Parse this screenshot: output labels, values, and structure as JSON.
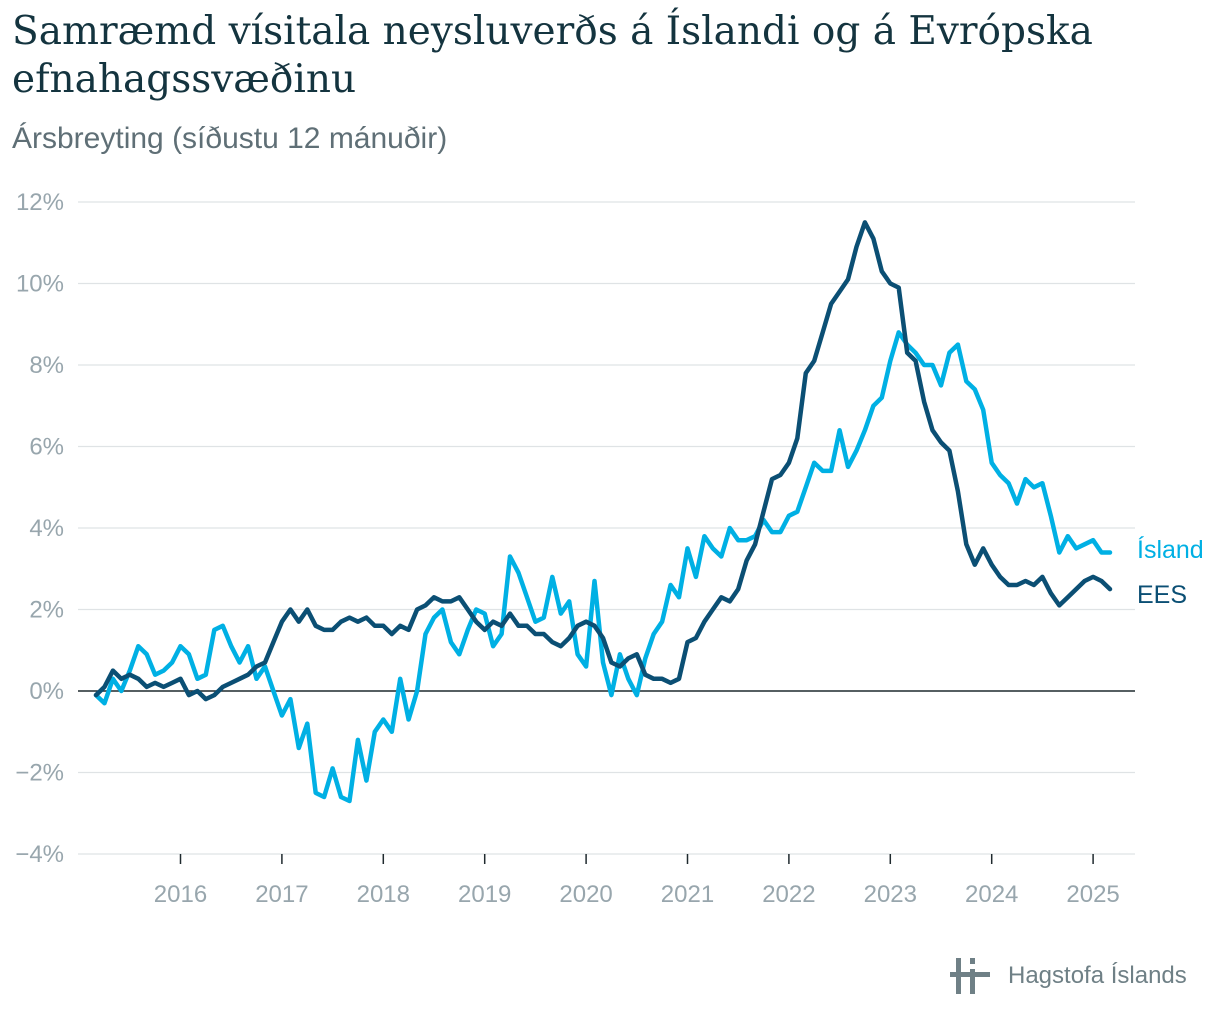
{
  "header": {
    "title": "Samræmd vísitala neysluverðs á Íslandi og á Evrópska efnahagssvæðinu",
    "subtitle": "Ársbreyting (síðustu 12 mánuðir)"
  },
  "brand": {
    "name": "Hagstofa Íslands",
    "icon": "hagstofa-logo-icon"
  },
  "colors": {
    "island": "#00b0e4",
    "ees": "#0b4f74",
    "grid": "#dfe3e5",
    "zero": "#1f2a2e"
  },
  "chart_data": {
    "type": "line",
    "x_start": "2015-03",
    "x_end": "2025-03",
    "x_ticks": [
      2016,
      2017,
      2018,
      2019,
      2020,
      2021,
      2022,
      2023,
      2024,
      2025
    ],
    "y_ticks": [
      -4,
      -2,
      0,
      2,
      4,
      6,
      8,
      10,
      12
    ],
    "y_tick_labels": [
      "−4%",
      "−2%",
      "0%",
      "2%",
      "4%",
      "6%",
      "8%",
      "10%",
      "12%"
    ],
    "ylim": [
      -4,
      12
    ],
    "grid": true,
    "legend": "direct labels at line ends",
    "series": [
      {
        "name": "Ísland",
        "key": "island",
        "values": [
          -0.1,
          -0.3,
          0.3,
          0.0,
          0.5,
          1.1,
          0.9,
          0.4,
          0.5,
          0.7,
          1.1,
          0.9,
          0.3,
          0.4,
          1.5,
          1.6,
          1.1,
          0.7,
          1.1,
          0.3,
          0.6,
          0.0,
          -0.6,
          -0.2,
          -1.4,
          -0.8,
          -2.5,
          -2.6,
          -1.9,
          -2.6,
          -2.7,
          -1.2,
          -2.2,
          -1.0,
          -0.7,
          -1.0,
          0.3,
          -0.7,
          0.0,
          1.4,
          1.8,
          2.0,
          1.2,
          0.9,
          1.5,
          2.0,
          1.9,
          1.1,
          1.4,
          3.3,
          2.9,
          2.3,
          1.7,
          1.8,
          2.8,
          1.9,
          2.2,
          0.9,
          0.6,
          2.7,
          0.7,
          -0.1,
          0.9,
          0.3,
          -0.1,
          0.8,
          1.4,
          1.7,
          2.6,
          2.3,
          3.5,
          2.8,
          3.8,
          3.5,
          3.3,
          4.0,
          3.7,
          3.7,
          3.8,
          4.2,
          3.9,
          3.9,
          4.3,
          4.4,
          5.0,
          5.6,
          5.4,
          5.4,
          6.4,
          5.5,
          5.9,
          6.4,
          7.0,
          7.2,
          8.1,
          8.8,
          8.5,
          8.3,
          8.0,
          8.0,
          7.5,
          8.3,
          8.5,
          7.6,
          7.4,
          6.9,
          5.6,
          5.3,
          5.1,
          4.6,
          5.2,
          5.0,
          5.1,
          4.3,
          3.4,
          3.8,
          3.5,
          3.6,
          3.7,
          3.4,
          3.4
        ]
      },
      {
        "name": "EES",
        "key": "ees",
        "values": [
          -0.1,
          0.1,
          0.5,
          0.3,
          0.4,
          0.3,
          0.1,
          0.2,
          0.1,
          0.2,
          0.3,
          -0.1,
          0.0,
          -0.2,
          -0.1,
          0.1,
          0.2,
          0.3,
          0.4,
          0.6,
          0.7,
          1.2,
          1.7,
          2.0,
          1.7,
          2.0,
          1.6,
          1.5,
          1.5,
          1.7,
          1.8,
          1.7,
          1.8,
          1.6,
          1.6,
          1.4,
          1.6,
          1.5,
          2.0,
          2.1,
          2.3,
          2.2,
          2.2,
          2.3,
          2.0,
          1.7,
          1.5,
          1.7,
          1.6,
          1.9,
          1.6,
          1.6,
          1.4,
          1.4,
          1.2,
          1.1,
          1.3,
          1.6,
          1.7,
          1.6,
          1.3,
          0.7,
          0.6,
          0.8,
          0.9,
          0.4,
          0.3,
          0.3,
          0.2,
          0.3,
          1.2,
          1.3,
          1.7,
          2.0,
          2.3,
          2.2,
          2.5,
          3.2,
          3.6,
          4.4,
          5.2,
          5.3,
          5.6,
          6.2,
          7.8,
          8.1,
          8.8,
          9.5,
          9.8,
          10.1,
          10.9,
          11.5,
          11.1,
          10.3,
          10.0,
          9.9,
          8.3,
          8.1,
          7.1,
          6.4,
          6.1,
          5.9,
          4.9,
          3.6,
          3.1,
          3.5,
          3.1,
          2.8,
          2.6,
          2.6,
          2.7,
          2.6,
          2.8,
          2.4,
          2.1,
          2.3,
          2.5,
          2.7,
          2.8,
          2.7,
          2.5
        ]
      }
    ]
  }
}
